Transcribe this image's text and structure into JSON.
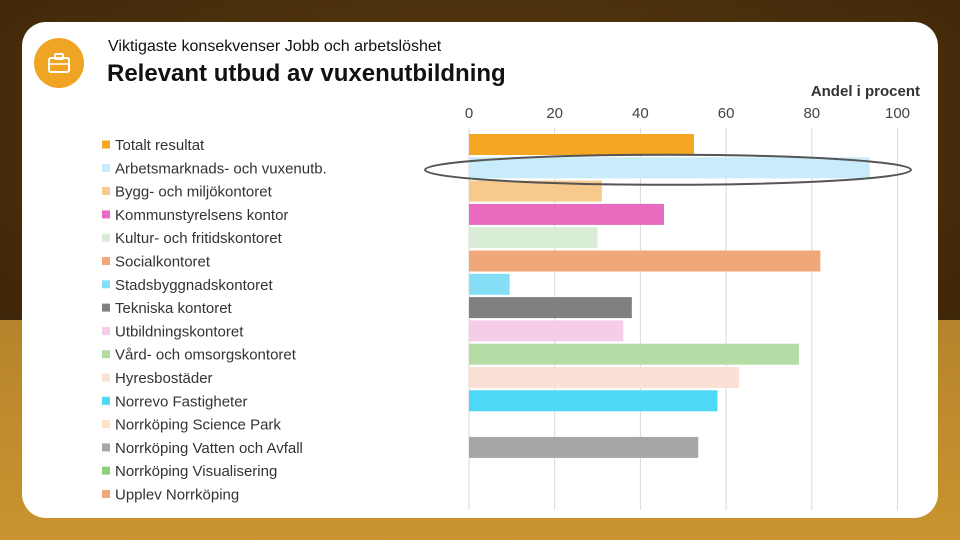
{
  "slide": {
    "subtitle": "Viktigaste konsekvenser Jobb och arbetslöshet",
    "title": "Relevant utbud av vuxenutbildning",
    "icon": "briefcase-icon",
    "accent": "#f0a423"
  },
  "chart_data": {
    "type": "bar",
    "orientation": "horizontal",
    "title": "Relevant utbud av vuxenutbildning",
    "xlabel": "Andel i procent",
    "xlim": [
      0,
      100
    ],
    "xticks": [
      0,
      20,
      40,
      60,
      80,
      100
    ],
    "legend_position": "left",
    "highlighted": "Arbetsmarknads- och vuxenutb.",
    "categories": [
      "Totalt resultat",
      "Arbetsmarknads- och vuxenutb.",
      "Bygg- och miljökontoret",
      "Kommunstyrelsens kontor",
      "Kultur- och fritidskontoret",
      "Socialkontoret",
      "Stadsbyggnadskontoret",
      "Tekniska kontoret",
      "Utbildningskontoret",
      "Vård- och omsorgskontoret",
      "Hyresbostäder",
      "Norrevo Fastigheter",
      "Norrköping Science Park",
      "Norrköping Vatten och Avfall",
      "Norrköping Visualisering",
      "Upplev Norrköping"
    ],
    "values": [
      52.5,
      93.5,
      31,
      45.5,
      30,
      82,
      9.5,
      38,
      36,
      77,
      63,
      58,
      null,
      53.5,
      null,
      null
    ],
    "colors": [
      "#f5a623",
      "#c9ecfa",
      "#f7c98b",
      "#e86bbf",
      "#d9ecd6",
      "#f0a87a",
      "#85e0f7",
      "#808080",
      "#f5cde6",
      "#b5dca5",
      "#fbe0d5",
      "#4dd9f5",
      "#fbe3c4",
      "#a6a6a6",
      "#8fcf7a",
      "#f0a87a"
    ]
  }
}
